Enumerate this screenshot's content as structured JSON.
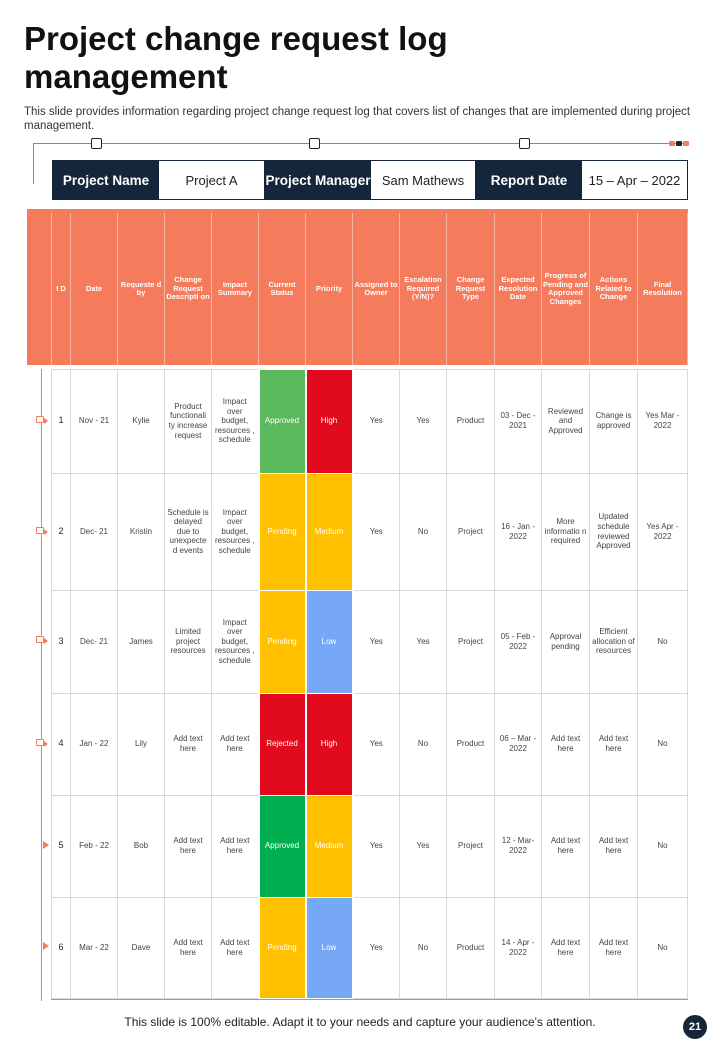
{
  "title": "Project change request log management",
  "subtitle": "This slide provides information regarding project change request log that covers list of changes that are implemented during project management.",
  "info_bar": {
    "project_name_label": "Project Name",
    "project_name_value": "Project A",
    "project_manager_label": "Project Manager",
    "project_manager_value": "Sam Mathews",
    "report_date_label": "Report  Date",
    "report_date_value": "15 – Apr – 2022"
  },
  "table": {
    "columns": [
      "I D",
      "Date",
      "Requeste d by",
      "Change Request Descripti on",
      "Impact Summary",
      "Current Status",
      "Priority",
      "Assigned to Owner",
      "Escalation Required (Y/N)?",
      "Change Request Type",
      "Expected Resolution Date",
      "Progress of Pending and Approved Changes",
      "Actions Related to Change",
      "Final Resolution"
    ],
    "rows": [
      {
        "id": "1",
        "date": "Nov - 21",
        "requested_by": "Kylie",
        "description": "Product functionali ty increase request",
        "impact": "Impact over budget, resources , schedule",
        "status": "Approved",
        "priority": "High",
        "owner": "Yes",
        "escalation": "Yes",
        "type": "Product",
        "expected_date": "03 - Dec - 2021",
        "progress": "Reviewed and Approved",
        "actions": "Change is approved",
        "final": "Yes Mar - 2022"
      },
      {
        "id": "2",
        "date": "Dec- 21",
        "requested_by": "Kristin",
        "description": "Schedule is delayed due to unexpecte d events",
        "impact": "Impact over budget, resources , schedule",
        "status": "Pending",
        "priority": "Medium",
        "owner": "Yes",
        "escalation": "No",
        "type": "Project",
        "expected_date": "16 - Jan - 2022",
        "progress": "More informatio n required",
        "actions": "Updated schedule reviewed Approved",
        "final": "Yes Apr - 2022"
      },
      {
        "id": "3",
        "date": "Dec- 21",
        "requested_by": "James",
        "description": "Limited project resources",
        "impact": "Impact over budget, resources , schedule",
        "status": "Pending",
        "priority": "Low",
        "owner": "Yes",
        "escalation": "Yes",
        "type": "Project",
        "expected_date": "05 - Feb - 2022",
        "progress": "Approval pending",
        "actions": "Efficient allocation of resources",
        "final": "No"
      },
      {
        "id": "4",
        "date": "Jan - 22",
        "requested_by": "Lily",
        "description": "Add text here",
        "impact": "Add text here",
        "status": "Rejected",
        "priority": "High",
        "owner": "Yes",
        "escalation": "No",
        "type": "Product",
        "expected_date": "06 – Mar - 2022",
        "progress": "Add text here",
        "actions": "Add text here",
        "final": "No"
      },
      {
        "id": "5",
        "date": "Feb - 22",
        "requested_by": "Bob",
        "description": "Add text here",
        "impact": "Add text here",
        "status": "Approved",
        "priority": "Medium",
        "owner": "Yes",
        "escalation": "Yes",
        "type": "Project",
        "expected_date": "12 - Mar- 2022",
        "progress": "Add text here",
        "actions": "Add text here",
        "final": "No"
      },
      {
        "id": "6",
        "date": "Mar - 22",
        "requested_by": "Dave",
        "description": "Add text here",
        "impact": "Add text here",
        "status": "Pending",
        "priority": "Low",
        "owner": "Yes",
        "escalation": "No",
        "type": "Product",
        "expected_date": "14 - Apr - 2022",
        "progress": "Add text here",
        "actions": "Add text here",
        "final": "No"
      }
    ]
  },
  "colors": {
    "header_orange": "#f47b5b",
    "navy": "#16263a",
    "status_approved_row1": "#5cb85c",
    "status_approved_row5": "#00b050",
    "status_pending": "#ffc000",
    "status_rejected": "#e20a1d",
    "priority_high": "#e20a1d",
    "priority_medium": "#ffc000",
    "priority_low": "#76a8f5"
  },
  "footer": "This slide is 100% editable. Adapt it to your needs and capture your audience's attention.",
  "page_number": "21"
}
